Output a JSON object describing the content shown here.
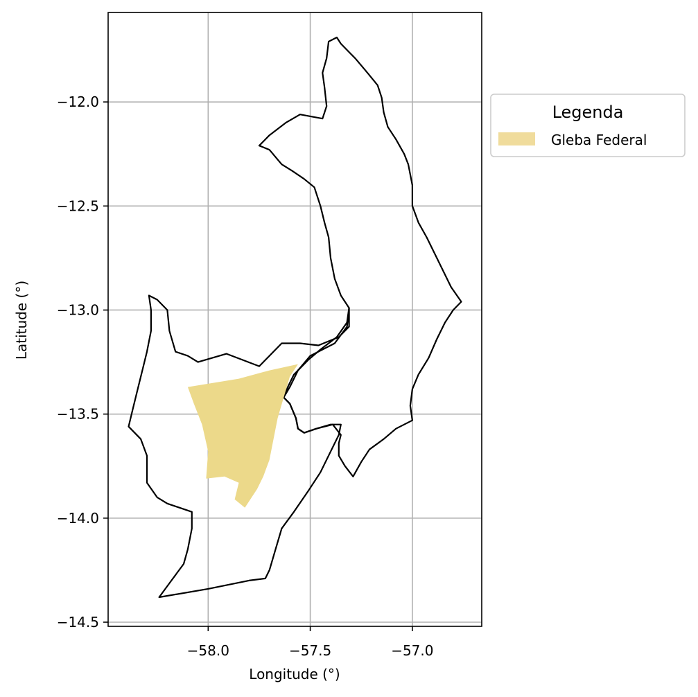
{
  "axes": {
    "xlabel": "Longitude (°)",
    "ylabel": "Latitude (°)",
    "xlim": [
      -58.49,
      -56.66
    ],
    "ylim": [
      -14.52,
      -11.57
    ],
    "x_ticks": [
      {
        "value": -58.0,
        "label": "−58.0"
      },
      {
        "value": -57.5,
        "label": "−57.5"
      },
      {
        "value": -57.0,
        "label": "−57.0"
      }
    ],
    "y_ticks": [
      {
        "value": -12.0,
        "label": "−12.0"
      },
      {
        "value": -12.5,
        "label": "−12.5"
      },
      {
        "value": -13.0,
        "label": "−13.0"
      },
      {
        "value": -13.5,
        "label": "−13.5"
      },
      {
        "value": -14.0,
        "label": "−14.0"
      },
      {
        "value": -14.5,
        "label": "−14.5"
      }
    ],
    "grid": true
  },
  "legend": {
    "title": "Legenda",
    "placement": "outside-right-top",
    "items": [
      {
        "label": "Gleba Federal",
        "color": "#f0dc9c"
      }
    ]
  },
  "layers": {
    "boundary": {
      "stroke": "#000000",
      "fill": "none",
      "coords": [
        [
          -57.41,
          -11.71
        ],
        [
          -57.37,
          -11.69
        ],
        [
          -57.35,
          -11.72
        ],
        [
          -57.32,
          -11.75
        ],
        [
          -57.28,
          -11.79
        ],
        [
          -57.22,
          -11.86
        ],
        [
          -57.17,
          -11.92
        ],
        [
          -57.15,
          -11.98
        ],
        [
          -57.14,
          -12.05
        ],
        [
          -57.12,
          -12.12
        ],
        [
          -57.08,
          -12.18
        ],
        [
          -57.04,
          -12.25
        ],
        [
          -57.02,
          -12.3
        ],
        [
          -57.0,
          -12.4
        ],
        [
          -57.0,
          -12.5
        ],
        [
          -56.97,
          -12.58
        ],
        [
          -56.93,
          -12.65
        ],
        [
          -56.89,
          -12.73
        ],
        [
          -56.84,
          -12.83
        ],
        [
          -56.81,
          -12.89
        ],
        [
          -56.76,
          -12.96
        ],
        [
          -56.8,
          -13.0
        ],
        [
          -56.84,
          -13.06
        ],
        [
          -56.88,
          -13.14
        ],
        [
          -56.92,
          -13.23
        ],
        [
          -56.97,
          -13.31
        ],
        [
          -57.0,
          -13.38
        ],
        [
          -57.01,
          -13.46
        ],
        [
          -57.0,
          -13.53
        ],
        [
          -57.08,
          -13.57
        ],
        [
          -57.14,
          -13.62
        ],
        [
          -57.21,
          -13.67
        ],
        [
          -57.25,
          -13.73
        ],
        [
          -57.29,
          -13.8
        ],
        [
          -57.33,
          -13.75
        ],
        [
          -57.36,
          -13.7
        ],
        [
          -57.36,
          -13.64
        ],
        [
          -57.35,
          -13.6
        ],
        [
          -57.39,
          -13.55
        ],
        [
          -57.47,
          -13.57
        ],
        [
          -57.53,
          -13.59
        ],
        [
          -57.56,
          -13.57
        ],
        [
          -57.57,
          -13.52
        ],
        [
          -57.6,
          -13.45
        ],
        [
          -57.63,
          -13.42
        ],
        [
          -57.61,
          -13.37
        ],
        [
          -57.58,
          -13.31
        ],
        [
          -57.51,
          -13.24
        ],
        [
          -57.45,
          -13.19
        ],
        [
          -57.37,
          -13.13
        ],
        [
          -57.32,
          -13.06
        ],
        [
          -57.31,
          -12.99
        ],
        [
          -57.35,
          -12.93
        ],
        [
          -57.38,
          -12.85
        ],
        [
          -57.4,
          -12.75
        ],
        [
          -57.41,
          -12.65
        ],
        [
          -57.43,
          -12.58
        ],
        [
          -57.45,
          -12.5
        ],
        [
          -57.48,
          -12.41
        ],
        [
          -57.53,
          -12.37
        ],
        [
          -57.59,
          -12.33
        ],
        [
          -57.64,
          -12.3
        ],
        [
          -57.7,
          -12.23
        ],
        [
          -57.75,
          -12.21
        ],
        [
          -57.7,
          -12.16
        ],
        [
          -57.62,
          -12.1
        ],
        [
          -57.55,
          -12.06
        ],
        [
          -57.44,
          -12.08
        ],
        [
          -57.42,
          -12.02
        ],
        [
          -57.43,
          -11.93
        ],
        [
          -57.44,
          -11.86
        ],
        [
          -57.42,
          -11.79
        ],
        [
          -57.41,
          -11.71
        ]
      ],
      "southwest_part": [
        [
          -57.63,
          -13.42
        ],
        [
          -57.6,
          -13.37
        ],
        [
          -57.56,
          -13.29
        ],
        [
          -57.5,
          -13.22
        ],
        [
          -57.38,
          -13.16
        ],
        [
          -57.32,
          -13.08
        ],
        [
          -57.31,
          -12.99
        ],
        [
          -57.31,
          -13.08
        ],
        [
          -57.36,
          -13.13
        ],
        [
          -57.46,
          -13.17
        ],
        [
          -57.55,
          -13.16
        ],
        [
          -57.64,
          -13.16
        ],
        [
          -57.7,
          -13.22
        ],
        [
          -57.75,
          -13.27
        ],
        [
          -57.91,
          -13.21
        ],
        [
          -58.05,
          -13.25
        ],
        [
          -58.1,
          -13.22
        ],
        [
          -58.16,
          -13.2
        ],
        [
          -58.19,
          -13.1
        ],
        [
          -58.2,
          -13.0
        ],
        [
          -58.25,
          -12.95
        ],
        [
          -58.29,
          -12.93
        ],
        [
          -58.28,
          -13.0
        ],
        [
          -58.28,
          -13.1
        ],
        [
          -58.3,
          -13.2
        ],
        [
          -58.32,
          -13.28
        ],
        [
          -58.35,
          -13.4
        ],
        [
          -58.37,
          -13.48
        ],
        [
          -58.39,
          -13.56
        ],
        [
          -58.33,
          -13.62
        ],
        [
          -58.3,
          -13.7
        ],
        [
          -58.3,
          -13.83
        ],
        [
          -58.25,
          -13.9
        ],
        [
          -58.2,
          -13.93
        ],
        [
          -58.08,
          -13.97
        ],
        [
          -58.08,
          -14.05
        ],
        [
          -58.1,
          -14.15
        ],
        [
          -58.12,
          -14.22
        ],
        [
          -58.18,
          -14.3
        ],
        [
          -58.24,
          -14.38
        ],
        [
          -58.0,
          -14.34
        ],
        [
          -57.8,
          -14.3
        ],
        [
          -57.72,
          -14.29
        ],
        [
          -57.7,
          -14.25
        ],
        [
          -57.67,
          -14.15
        ],
        [
          -57.64,
          -14.05
        ],
        [
          -57.58,
          -13.97
        ],
        [
          -57.51,
          -13.87
        ],
        [
          -57.45,
          -13.78
        ],
        [
          -57.4,
          -13.68
        ],
        [
          -57.36,
          -13.6
        ],
        [
          -57.35,
          -13.55
        ],
        [
          -57.4,
          -13.55
        ],
        [
          -57.47,
          -13.57
        ],
        [
          -57.53,
          -13.59
        ],
        [
          -57.56,
          -13.57
        ],
        [
          -57.57,
          -13.52
        ],
        [
          -57.6,
          -13.45
        ],
        [
          -57.63,
          -13.42
        ]
      ]
    },
    "gleba_federal": {
      "fill": "#ecd98a",
      "coords": [
        [
          -58.1,
          -13.37
        ],
        [
          -57.85,
          -13.33
        ],
        [
          -57.7,
          -13.29
        ],
        [
          -57.56,
          -13.26
        ],
        [
          -57.6,
          -13.32
        ],
        [
          -57.63,
          -13.42
        ],
        [
          -57.66,
          -13.52
        ],
        [
          -57.68,
          -13.62
        ],
        [
          -57.7,
          -13.72
        ],
        [
          -57.73,
          -13.8
        ],
        [
          -57.76,
          -13.86
        ],
        [
          -57.8,
          -13.92
        ],
        [
          -57.82,
          -13.95
        ],
        [
          -57.87,
          -13.91
        ],
        [
          -57.85,
          -13.83
        ],
        [
          -57.92,
          -13.8
        ],
        [
          -58.01,
          -13.81
        ],
        [
          -58.0,
          -13.68
        ],
        [
          -58.03,
          -13.55
        ],
        [
          -58.07,
          -13.45
        ],
        [
          -58.1,
          -13.37
        ]
      ]
    }
  }
}
